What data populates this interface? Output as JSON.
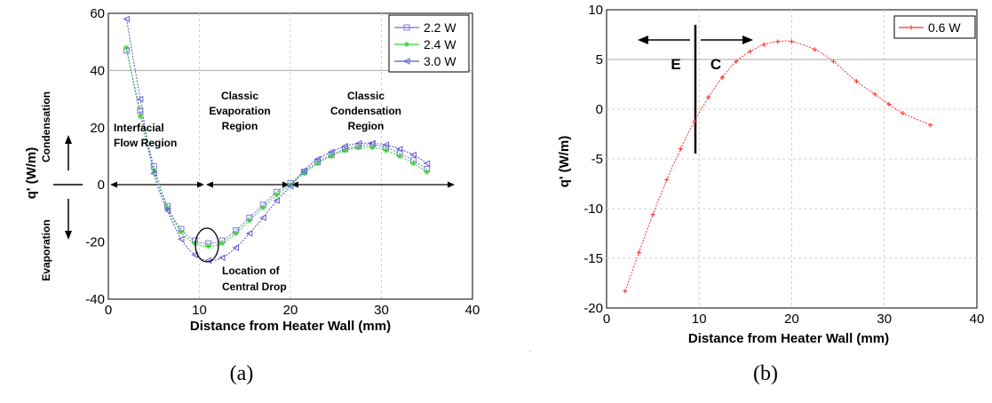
{
  "chart_data": [
    {
      "type": "line",
      "caption": "(a)",
      "xlabel": "Distance from Heater Wall (mm)",
      "ylabel": "q' (W/m)",
      "xlim": [
        0,
        40
      ],
      "ylim": [
        -40,
        60
      ],
      "xticks": [
        "0",
        "10",
        "20",
        "30",
        "40"
      ],
      "yticks": [
        "-40",
        "-20",
        "0",
        "20",
        "40",
        "60"
      ],
      "grid": "dashed vertical lines, solid horizontal line at 40",
      "legend_position": "top-right",
      "series": [
        {
          "name": "2.2 W",
          "color": "#7070d8",
          "marker": "square",
          "x": [
            2,
            3.5,
            5,
            6.5,
            8,
            9.5,
            11,
            12.5,
            14,
            15.5,
            17,
            18.5,
            20,
            21.5,
            23,
            24.5,
            26,
            27.5,
            29,
            30.5,
            32,
            33.5,
            35
          ],
          "y": [
            47,
            26,
            6.5,
            -7.5,
            -15.5,
            -19.5,
            -20.5,
            -19.5,
            -16,
            -11.5,
            -7,
            -2.5,
            0.5,
            4.5,
            8,
            10.5,
            12.5,
            13.5,
            14,
            13,
            11,
            8.5,
            5.5
          ]
        },
        {
          "name": "2.4 W",
          "color": "#33cc33",
          "marker": "star",
          "x": [
            2,
            3.5,
            5,
            6.5,
            8,
            9.5,
            11,
            12.5,
            14,
            15.5,
            17,
            18.5,
            20,
            21.5,
            23,
            24.5,
            26,
            27.5,
            29,
            30.5,
            32,
            33.5,
            35
          ],
          "y": [
            48,
            24,
            5,
            -8,
            -16.5,
            -20.5,
            -21.5,
            -20.5,
            -17,
            -12.5,
            -8,
            -3.5,
            0,
            4,
            7.5,
            10,
            12,
            13,
            13,
            12,
            10,
            7.5,
            4.5
          ]
        },
        {
          "name": "3.0 W",
          "color": "#5555cc",
          "marker": "triangle-left",
          "x": [
            2,
            3.5,
            5,
            6.5,
            8,
            9.5,
            11,
            12.5,
            14,
            15.5,
            17,
            18.5,
            20,
            21.5,
            23,
            24.5,
            26,
            27.5,
            29,
            30.5,
            32,
            33.5,
            35
          ],
          "y": [
            58,
            30,
            4,
            -9,
            -19,
            -24.5,
            -26.5,
            -25.5,
            -22,
            -17,
            -11.5,
            -5.5,
            -0.5,
            5,
            9,
            11.5,
            13.5,
            14.5,
            14.5,
            14,
            12.5,
            10.5,
            7.5
          ]
        }
      ],
      "annotations": {
        "interfacial": [
          "Interfacial",
          "Flow Region"
        ],
        "classic_evap": [
          "Classic",
          "Evaporation",
          "Region"
        ],
        "classic_cond": [
          "Classic",
          "Condensation",
          "Region"
        ],
        "central_drop": [
          "Location of",
          "Central Drop"
        ],
        "condensation_side": "Condensation",
        "evaporation_side": "Evaporation"
      }
    },
    {
      "type": "line",
      "caption": "(b)",
      "xlabel": "Distance from Heater Wall (mm)",
      "ylabel": "q' (W/m)",
      "xlim": [
        0,
        40
      ],
      "ylim": [
        -20,
        10
      ],
      "xticks": [
        "0",
        "10",
        "20",
        "30",
        "40"
      ],
      "yticks": [
        "-20",
        "-15",
        "-10",
        "-5",
        "0",
        "5",
        "10"
      ],
      "grid": "dashed vertical and horizontal lines, solid horizontal line at 5",
      "legend_position": "top-right",
      "series": [
        {
          "name": "0.6 W",
          "color": "#ff3333",
          "marker": "plus",
          "x": [
            2,
            3.5,
            5,
            6.5,
            8,
            9.5,
            11,
            12.5,
            14,
            15.5,
            17,
            18.5,
            20,
            22.5,
            24.5,
            27,
            29,
            30.5,
            32,
            35
          ],
          "y": [
            -18.3,
            -14.4,
            -10.6,
            -7.1,
            -4,
            -1.2,
            1.2,
            3.2,
            4.8,
            5.8,
            6.5,
            6.8,
            6.8,
            6.0,
            4.8,
            2.8,
            1.5,
            0.5,
            -0.4,
            -1.6
          ]
        }
      ],
      "annotations": {
        "e_label": "E",
        "c_label": "C"
      }
    }
  ]
}
